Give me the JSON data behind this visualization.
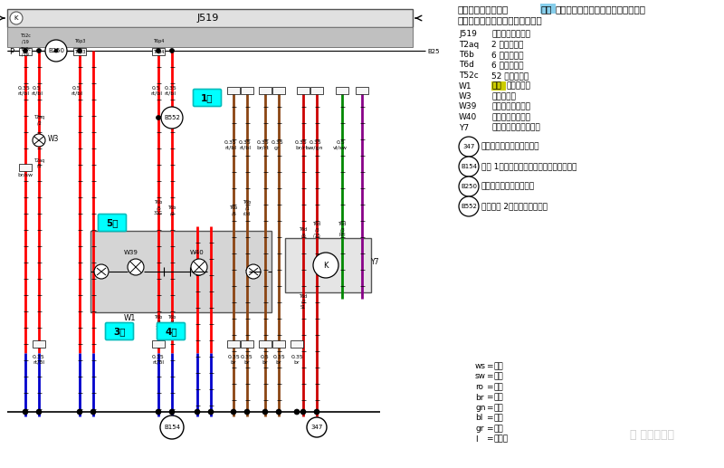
{
  "bg_color": "#ffffff",
  "fig_width": 8.0,
  "fig_height": 5.17,
  "legend_items": [
    [
      "ws",
      "白色"
    ],
    [
      "sw",
      "黑色"
    ],
    [
      "ro",
      "红色"
    ],
    [
      "br",
      "褐色"
    ],
    [
      "gn",
      "绿色"
    ],
    [
      "bl",
      "蓝色"
    ],
    [
      "gr",
      "灰色"
    ],
    [
      "l",
      "淡蓝色"
    ]
  ],
  "component_labels": [
    [
      "J519",
      "车载电网控制单元"
    ],
    [
      "T2aq",
      "2 芯插头连接"
    ],
    [
      "T6b",
      "6 芯插头连接"
    ],
    [
      "T6d",
      "6 芯插头连接"
    ],
    [
      "T52c",
      "52 芯插头连接"
    ],
    [
      "W1",
      "前部车内照明灯"
    ],
    [
      "W3",
      "行李笱照明"
    ],
    [
      "W39",
      "阅读灯，左侧中部"
    ],
    [
      "W40",
      "阅读灯，右侧中部"
    ],
    [
      "Y7",
      "自动防眼的车内后视镜"
    ]
  ],
  "circle_labels": [
    [
      "347",
      "接地连接，在车顶号线束中"
    ],
    [
      "B154",
      "连接 1（车门触点），在车内空间号线束中"
    ],
    [
      "B250",
      "车顶号线束中的正极连接"
    ],
    [
      "B552",
      "正极连接 2，在车顶号线束中"
    ]
  ],
  "title_line1": "车载电网控制单元，",
  "title_highlight": "前部",
  "title_line1_after": "车内照明灯，行李笱照明，阅读灯，",
  "title_line2": "右侧中部，自动防眼的车内后视镜"
}
